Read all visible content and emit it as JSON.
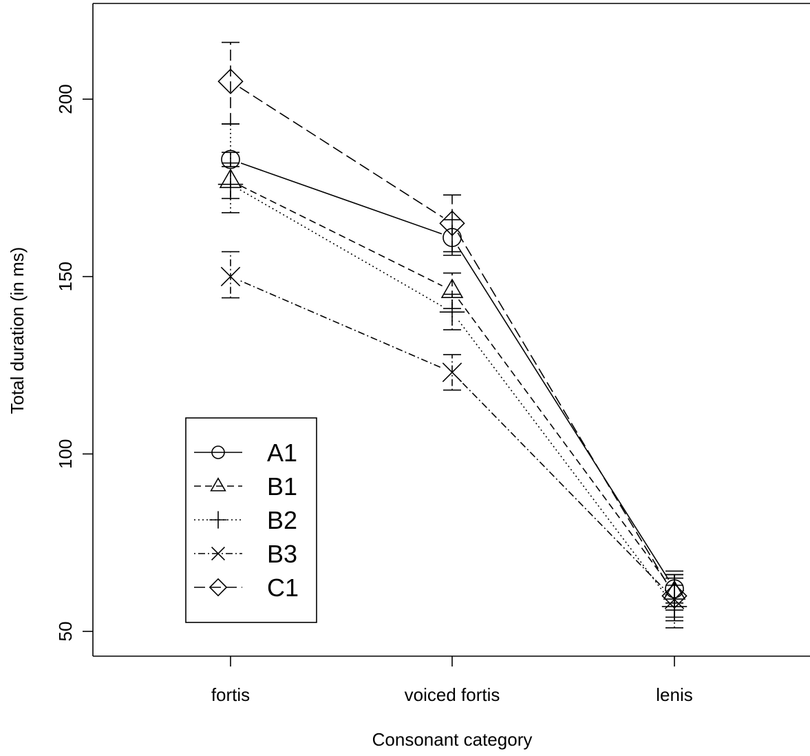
{
  "chart_data": {
    "type": "line",
    "title": "",
    "xlabel": "Consonant category",
    "ylabel": "Total duration (in ms)",
    "categories": [
      "fortis",
      "voiced fortis",
      "lenis"
    ],
    "ylim": [
      43,
      226
    ],
    "yticks": [
      50,
      100,
      150,
      200
    ],
    "grid": false,
    "legend_position": "bottom-left",
    "series": [
      {
        "name": "A1",
        "marker": "circle",
        "linestyle": "solid",
        "values": [
          183,
          161,
          62
        ],
        "err_low": [
          181,
          156,
          58
        ],
        "err_high": [
          185,
          166,
          66
        ]
      },
      {
        "name": "B1",
        "marker": "triangle",
        "linestyle": "dashed",
        "values": [
          177,
          146,
          61
        ],
        "err_low": [
          172,
          141,
          56
        ],
        "err_high": [
          182,
          151,
          66
        ]
      },
      {
        "name": "B2",
        "marker": "plus",
        "linestyle": "dotted",
        "values": [
          176,
          140,
          57
        ],
        "err_low": [
          168,
          135,
          51
        ],
        "err_high": [
          193,
          145,
          63
        ]
      },
      {
        "name": "B3",
        "marker": "x",
        "linestyle": "dotdash",
        "values": [
          150,
          123,
          59
        ],
        "err_low": [
          144,
          118,
          53
        ],
        "err_high": [
          157,
          128,
          65
        ]
      },
      {
        "name": "C1",
        "marker": "diamond",
        "linestyle": "longdash",
        "values": [
          205,
          165,
          60
        ],
        "err_low": [
          193,
          157,
          54
        ],
        "err_high": [
          216,
          173,
          67
        ]
      }
    ]
  }
}
